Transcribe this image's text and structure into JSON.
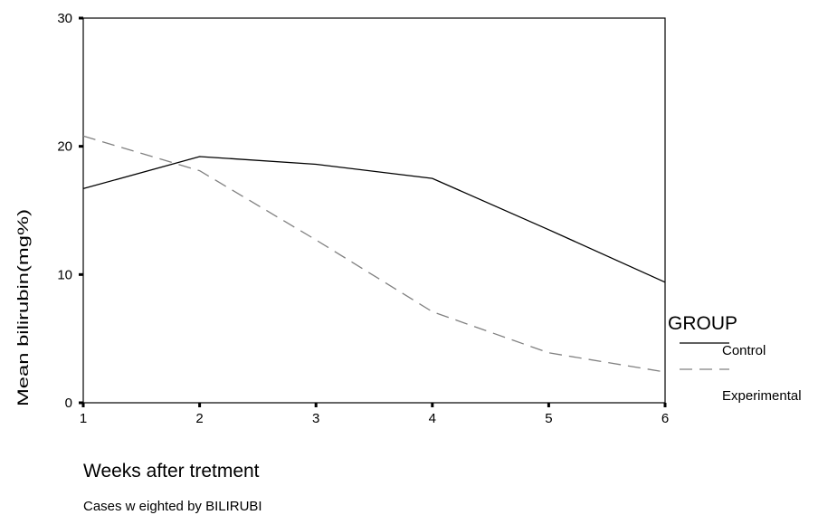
{
  "chart_data": {
    "type": "line",
    "x": [
      1,
      2,
      3,
      4,
      5,
      6
    ],
    "xlim": [
      1,
      6
    ],
    "ylim": [
      0,
      30
    ],
    "x_ticks": [
      "1",
      "2",
      "3",
      "4",
      "5",
      "6"
    ],
    "y_ticks": [
      "0",
      "10",
      "20",
      "30"
    ],
    "xlabel": "Weeks after tretment",
    "ylabel": "Mean bilirubin(mg%)",
    "footnote": "Cases w eighted by BILIRUBI",
    "legend": {
      "title": "GROUP",
      "placement": "right"
    },
    "grid": false,
    "series": [
      {
        "name": "Control",
        "color": "#000000",
        "dash": "solid",
        "values": [
          16.7,
          19.2,
          18.6,
          17.5,
          13.5,
          9.4
        ]
      },
      {
        "name": "Experimental",
        "color": "#808080",
        "dash": "dashed",
        "values": [
          20.8,
          18.1,
          12.7,
          7.1,
          3.9,
          2.4
        ]
      }
    ]
  }
}
